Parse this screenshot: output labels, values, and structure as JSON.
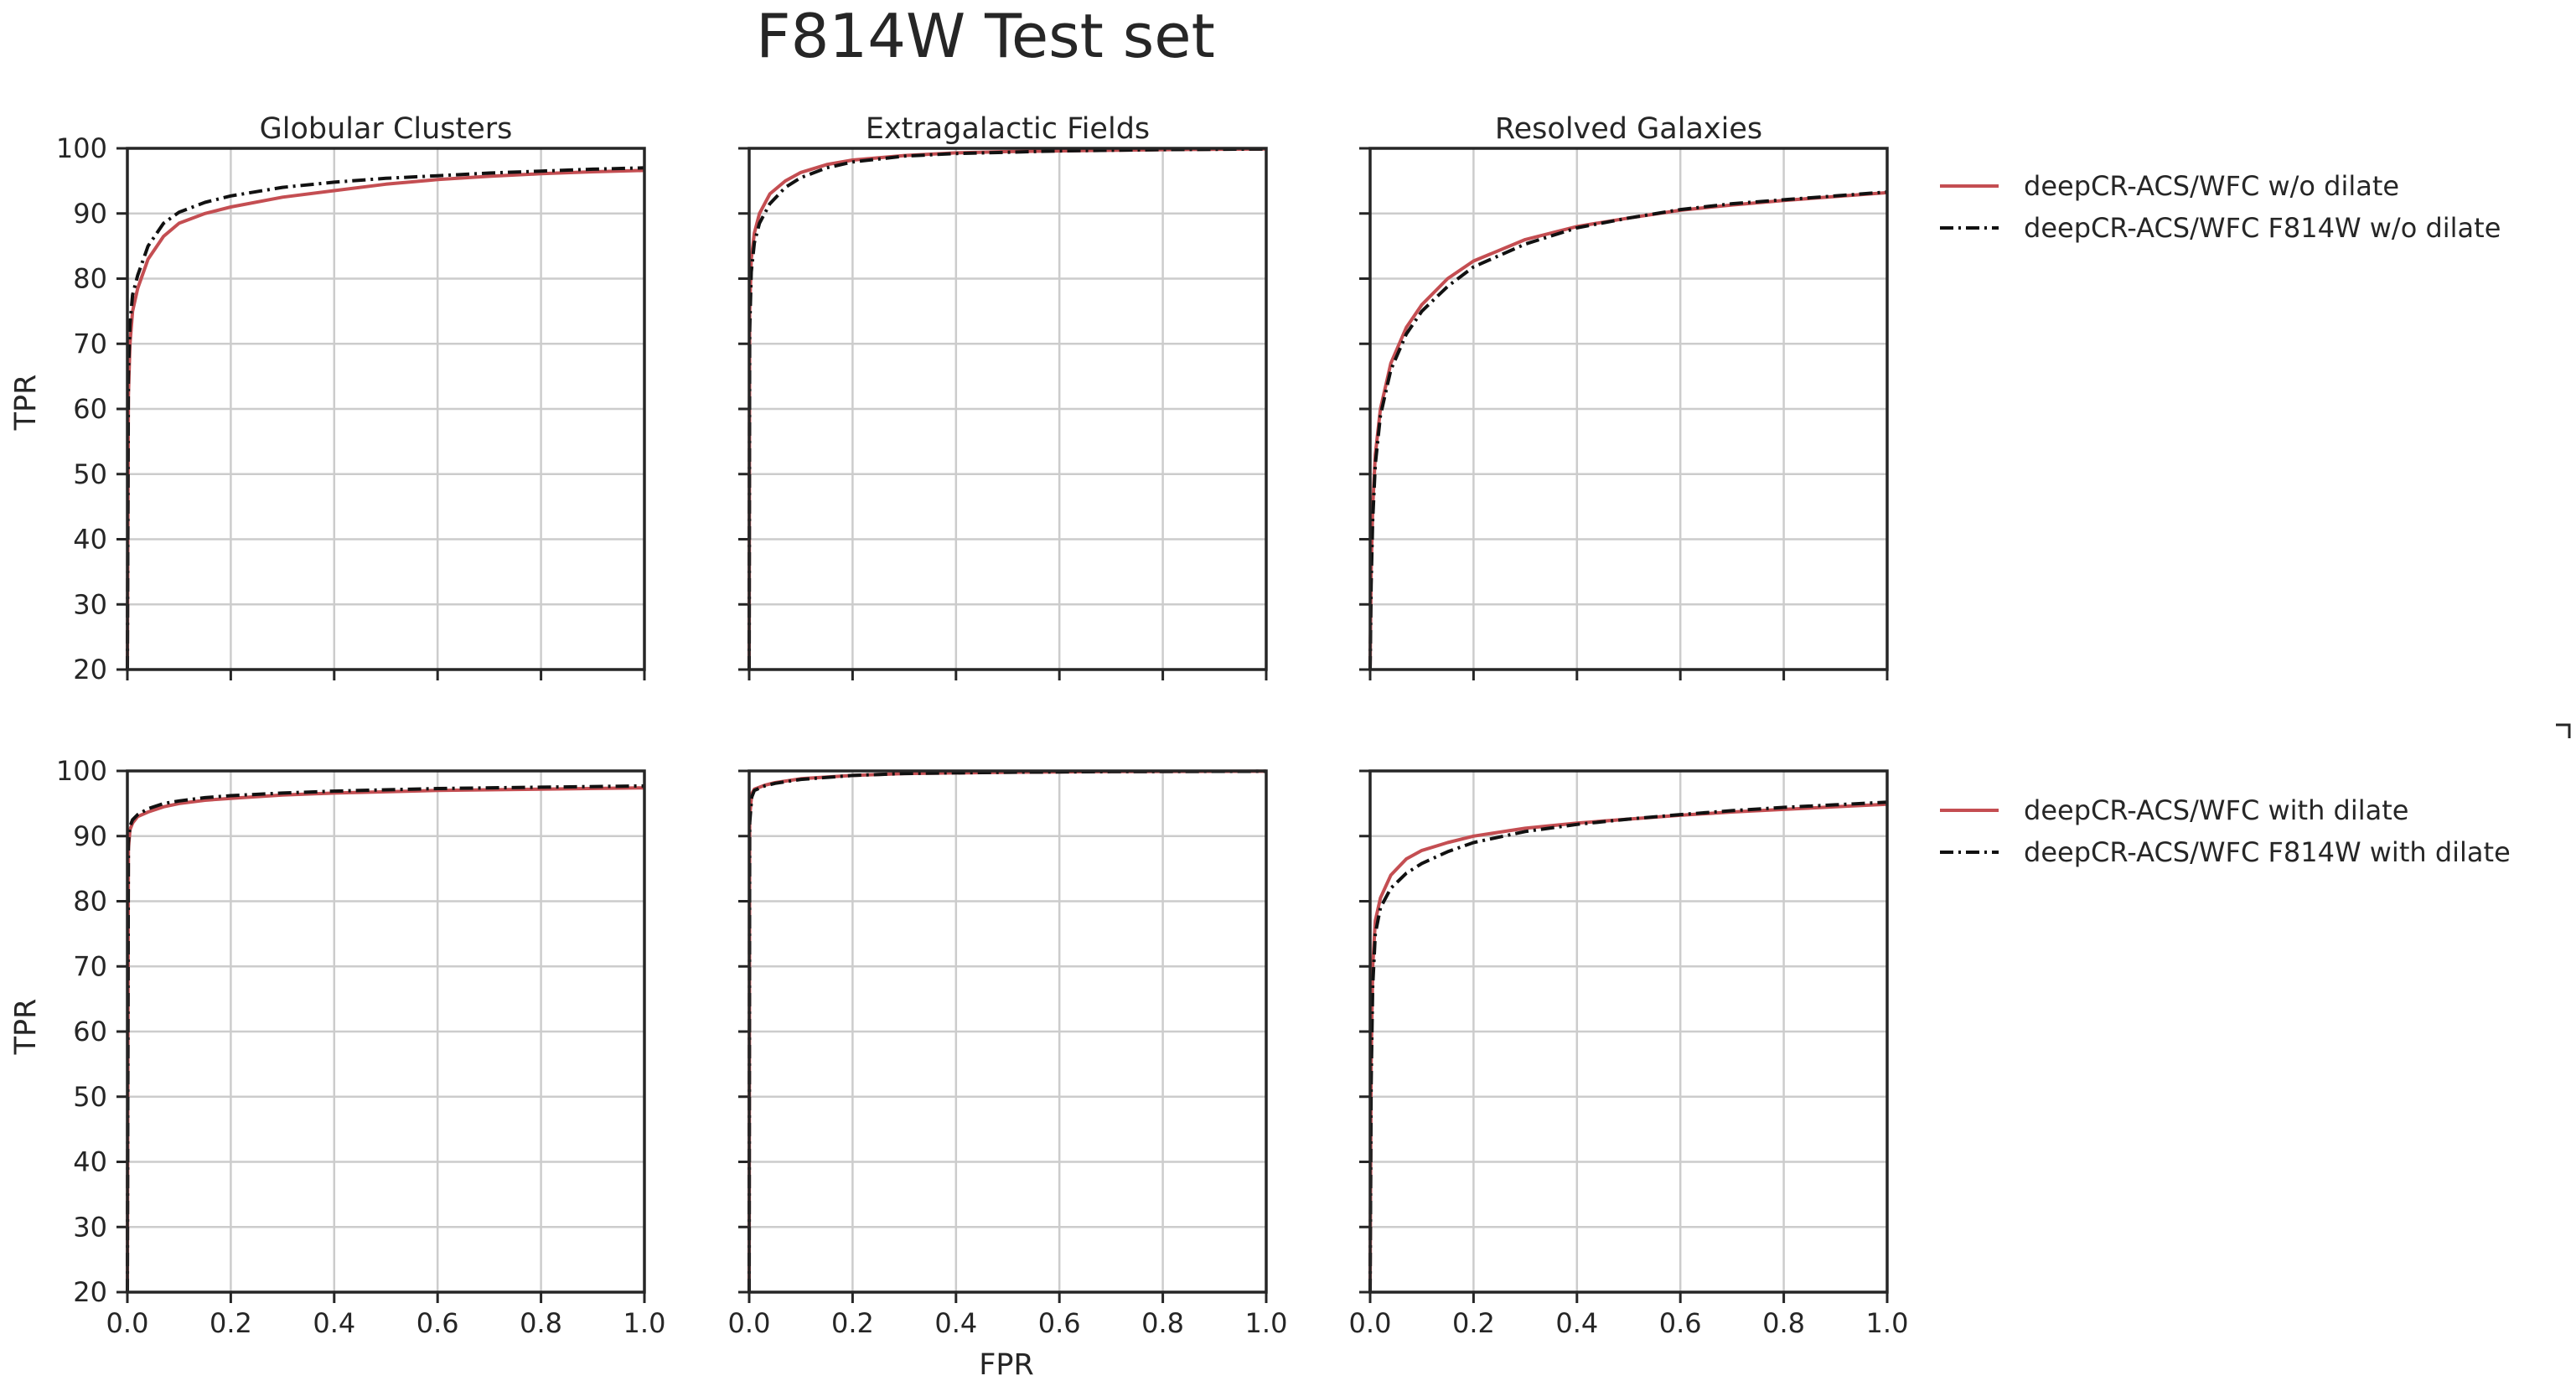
{
  "figure": {
    "title": "F814W Test set",
    "xlabel": "FPR",
    "ylabel": "TPR",
    "colors": {
      "series_a": "#c44e52",
      "series_b": "#111111",
      "grid": "#cccccc",
      "axis": "#262626"
    }
  },
  "legends": [
    {
      "row": 0,
      "entries": [
        "deepCR-ACS/WFC w/o dilate",
        "deepCR-ACS/WFC F814W w/o dilate"
      ]
    },
    {
      "row": 1,
      "entries": [
        "deepCR-ACS/WFC with dilate",
        "deepCR-ACS/WFC F814W with dilate"
      ]
    }
  ],
  "chart_data": [
    {
      "type": "line",
      "title": "Globular Clusters",
      "xlabel": "",
      "ylabel": "TPR",
      "xlim": [
        0,
        1
      ],
      "ylim": [
        20,
        100
      ],
      "grid": true,
      "legend": "right",
      "series": [
        {
          "name": "deepCR-ACS/WFC w/o dilate",
          "style": "solid",
          "points": [
            [
              0,
              20
            ],
            [
              0.002,
              62
            ],
            [
              0.005,
              70
            ],
            [
              0.01,
              75
            ],
            [
              0.02,
              78.5
            ],
            [
              0.04,
              83
            ],
            [
              0.07,
              86.5
            ],
            [
              0.1,
              88.5
            ],
            [
              0.15,
              90
            ],
            [
              0.2,
              91
            ],
            [
              0.3,
              92.5
            ],
            [
              0.4,
              93.5
            ],
            [
              0.5,
              94.5
            ],
            [
              0.6,
              95.2
            ],
            [
              0.7,
              95.7
            ],
            [
              0.8,
              96.1
            ],
            [
              0.9,
              96.4
            ],
            [
              1.0,
              96.6
            ]
          ]
        },
        {
          "name": "deepCR-ACS/WFC F814W w/o dilate",
          "style": "dashdot",
          "points": [
            [
              0,
              20
            ],
            [
              0.002,
              65
            ],
            [
              0.005,
              73
            ],
            [
              0.01,
              77.5
            ],
            [
              0.02,
              80.5
            ],
            [
              0.04,
              85
            ],
            [
              0.07,
              88.5
            ],
            [
              0.1,
              90.2
            ],
            [
              0.15,
              91.7
            ],
            [
              0.2,
              92.7
            ],
            [
              0.3,
              94
            ],
            [
              0.4,
              94.8
            ],
            [
              0.5,
              95.4
            ],
            [
              0.6,
              95.8
            ],
            [
              0.7,
              96.2
            ],
            [
              0.8,
              96.5
            ],
            [
              0.9,
              96.8
            ],
            [
              1.0,
              97
            ]
          ]
        }
      ]
    },
    {
      "type": "line",
      "title": "Extragalactic Fields",
      "xlabel": "",
      "ylabel": "",
      "xlim": [
        0,
        1
      ],
      "ylim": [
        20,
        100
      ],
      "grid": true,
      "legend": "none",
      "series": [
        {
          "name": "deepCR-ACS/WFC w/o dilate",
          "style": "solid",
          "points": [
            [
              0,
              20
            ],
            [
              0.001,
              75
            ],
            [
              0.004,
              83
            ],
            [
              0.01,
              87
            ],
            [
              0.02,
              90
            ],
            [
              0.04,
              93
            ],
            [
              0.07,
              95
            ],
            [
              0.1,
              96.3
            ],
            [
              0.15,
              97.5
            ],
            [
              0.2,
              98.2
            ],
            [
              0.3,
              98.9
            ],
            [
              0.4,
              99.3
            ],
            [
              0.5,
              99.5
            ],
            [
              0.6,
              99.6
            ],
            [
              0.8,
              99.8
            ],
            [
              1.0,
              99.9
            ]
          ]
        },
        {
          "name": "deepCR-ACS/WFC F814W w/o dilate",
          "style": "dashdot",
          "points": [
            [
              0,
              20
            ],
            [
              0.001,
              72
            ],
            [
              0.004,
              81
            ],
            [
              0.01,
              85.5
            ],
            [
              0.02,
              88.5
            ],
            [
              0.04,
              91.5
            ],
            [
              0.07,
              94
            ],
            [
              0.1,
              95.5
            ],
            [
              0.15,
              97
            ],
            [
              0.2,
              97.9
            ],
            [
              0.3,
              98.8
            ],
            [
              0.4,
              99.2
            ],
            [
              0.5,
              99.4
            ],
            [
              0.6,
              99.6
            ],
            [
              0.8,
              99.8
            ],
            [
              1.0,
              99.9
            ]
          ]
        }
      ]
    },
    {
      "type": "line",
      "title": "Resolved Galaxies",
      "xlabel": "",
      "ylabel": "",
      "xlim": [
        0,
        1
      ],
      "ylim": [
        20,
        100
      ],
      "grid": true,
      "legend": "none",
      "series": [
        {
          "name": "deepCR-ACS/WFC w/o dilate",
          "style": "solid",
          "points": [
            [
              0,
              20
            ],
            [
              0.002,
              35
            ],
            [
              0.005,
              45
            ],
            [
              0.01,
              53
            ],
            [
              0.02,
              60
            ],
            [
              0.04,
              67
            ],
            [
              0.07,
              72.5
            ],
            [
              0.1,
              76
            ],
            [
              0.15,
              80
            ],
            [
              0.2,
              82.7
            ],
            [
              0.3,
              86
            ],
            [
              0.4,
              88
            ],
            [
              0.5,
              89.3
            ],
            [
              0.6,
              90.5
            ],
            [
              0.7,
              91.3
            ],
            [
              0.8,
              92
            ],
            [
              0.9,
              92.6
            ],
            [
              1.0,
              93.2
            ]
          ]
        },
        {
          "name": "deepCR-ACS/WFC F814W w/o dilate",
          "style": "dashdot",
          "points": [
            [
              0,
              20
            ],
            [
              0.002,
              33
            ],
            [
              0.005,
              43
            ],
            [
              0.01,
              51.5
            ],
            [
              0.02,
              59
            ],
            [
              0.04,
              66
            ],
            [
              0.07,
              71.5
            ],
            [
              0.1,
              75
            ],
            [
              0.15,
              78.8
            ],
            [
              0.2,
              81.8
            ],
            [
              0.3,
              85.3
            ],
            [
              0.4,
              87.8
            ],
            [
              0.5,
              89.3
            ],
            [
              0.6,
              90.6
            ],
            [
              0.7,
              91.5
            ],
            [
              0.8,
              92.1
            ],
            [
              0.9,
              92.7
            ],
            [
              1.0,
              93.3
            ]
          ]
        }
      ]
    },
    {
      "type": "line",
      "title": "",
      "xlabel": "",
      "ylabel": "TPR",
      "xlim": [
        0,
        1
      ],
      "ylim": [
        20,
        100
      ],
      "grid": true,
      "legend": "right",
      "series": [
        {
          "name": "deepCR-ACS/WFC with dilate",
          "style": "solid",
          "points": [
            [
              0,
              20
            ],
            [
              0.002,
              88
            ],
            [
              0.005,
              91
            ],
            [
              0.01,
              92
            ],
            [
              0.02,
              93
            ],
            [
              0.04,
              93.7
            ],
            [
              0.07,
              94.5
            ],
            [
              0.1,
              95
            ],
            [
              0.15,
              95.5
            ],
            [
              0.2,
              95.8
            ],
            [
              0.3,
              96.3
            ],
            [
              0.4,
              96.6
            ],
            [
              0.5,
              96.8
            ],
            [
              0.6,
              97
            ],
            [
              0.8,
              97.2
            ],
            [
              1.0,
              97.4
            ]
          ]
        },
        {
          "name": "deepCR-ACS/WFC F814W with dilate",
          "style": "dashdot",
          "points": [
            [
              0,
              20
            ],
            [
              0.002,
              89
            ],
            [
              0.005,
              91.5
            ],
            [
              0.01,
              92.5
            ],
            [
              0.02,
              93.3
            ],
            [
              0.04,
              94.2
            ],
            [
              0.07,
              95
            ],
            [
              0.1,
              95.4
            ],
            [
              0.15,
              95.9
            ],
            [
              0.2,
              96.2
            ],
            [
              0.3,
              96.6
            ],
            [
              0.4,
              96.9
            ],
            [
              0.5,
              97.1
            ],
            [
              0.6,
              97.3
            ],
            [
              0.8,
              97.5
            ],
            [
              1.0,
              97.7
            ]
          ]
        }
      ]
    },
    {
      "type": "line",
      "title": "",
      "xlabel": "FPR",
      "ylabel": "",
      "xlim": [
        0,
        1
      ],
      "ylim": [
        20,
        100
      ],
      "grid": true,
      "legend": "none",
      "series": [
        {
          "name": "deepCR-ACS/WFC with dilate",
          "style": "solid",
          "points": [
            [
              0,
              20
            ],
            [
              0.001,
              93
            ],
            [
              0.005,
              96.5
            ],
            [
              0.01,
              97.2
            ],
            [
              0.03,
              97.8
            ],
            [
              0.05,
              98.2
            ],
            [
              0.1,
              98.8
            ],
            [
              0.2,
              99.3
            ],
            [
              0.3,
              99.6
            ],
            [
              0.5,
              99.8
            ],
            [
              0.7,
              99.9
            ],
            [
              1.0,
              99.95
            ]
          ]
        },
        {
          "name": "deepCR-ACS/WFC F814W with dilate",
          "style": "dashdot",
          "points": [
            [
              0,
              20
            ],
            [
              0.001,
              92
            ],
            [
              0.005,
              96
            ],
            [
              0.01,
              97
            ],
            [
              0.03,
              97.7
            ],
            [
              0.05,
              98.1
            ],
            [
              0.1,
              98.7
            ],
            [
              0.2,
              99.3
            ],
            [
              0.3,
              99.6
            ],
            [
              0.5,
              99.8
            ],
            [
              0.7,
              99.9
            ],
            [
              1.0,
              99.95
            ]
          ]
        }
      ]
    },
    {
      "type": "line",
      "title": "",
      "xlabel": "",
      "ylabel": "",
      "xlim": [
        0,
        1
      ],
      "ylim": [
        20,
        100
      ],
      "grid": true,
      "legend": "none",
      "series": [
        {
          "name": "deepCR-ACS/WFC with dilate",
          "style": "solid",
          "points": [
            [
              0,
              20
            ],
            [
              0.002,
              55
            ],
            [
              0.005,
              70
            ],
            [
              0.01,
              77
            ],
            [
              0.02,
              80.5
            ],
            [
              0.04,
              84
            ],
            [
              0.07,
              86.5
            ],
            [
              0.1,
              87.8
            ],
            [
              0.15,
              89
            ],
            [
              0.2,
              90
            ],
            [
              0.3,
              91.2
            ],
            [
              0.4,
              92
            ],
            [
              0.5,
              92.6
            ],
            [
              0.6,
              93.2
            ],
            [
              0.7,
              93.7
            ],
            [
              0.8,
              94.1
            ],
            [
              0.9,
              94.5
            ],
            [
              1.0,
              94.9
            ]
          ]
        },
        {
          "name": "deepCR-ACS/WFC F814W with dilate",
          "style": "dashdot",
          "points": [
            [
              0,
              20
            ],
            [
              0.002,
              52
            ],
            [
              0.005,
              67
            ],
            [
              0.01,
              75
            ],
            [
              0.02,
              79
            ],
            [
              0.04,
              82
            ],
            [
              0.07,
              84.3
            ],
            [
              0.1,
              85.8
            ],
            [
              0.15,
              87.6
            ],
            [
              0.2,
              89
            ],
            [
              0.3,
              90.7
            ],
            [
              0.4,
              91.8
            ],
            [
              0.5,
              92.6
            ],
            [
              0.6,
              93.3
            ],
            [
              0.7,
              93.9
            ],
            [
              0.8,
              94.4
            ],
            [
              0.9,
              94.8
            ],
            [
              1.0,
              95.2
            ]
          ]
        }
      ]
    }
  ]
}
